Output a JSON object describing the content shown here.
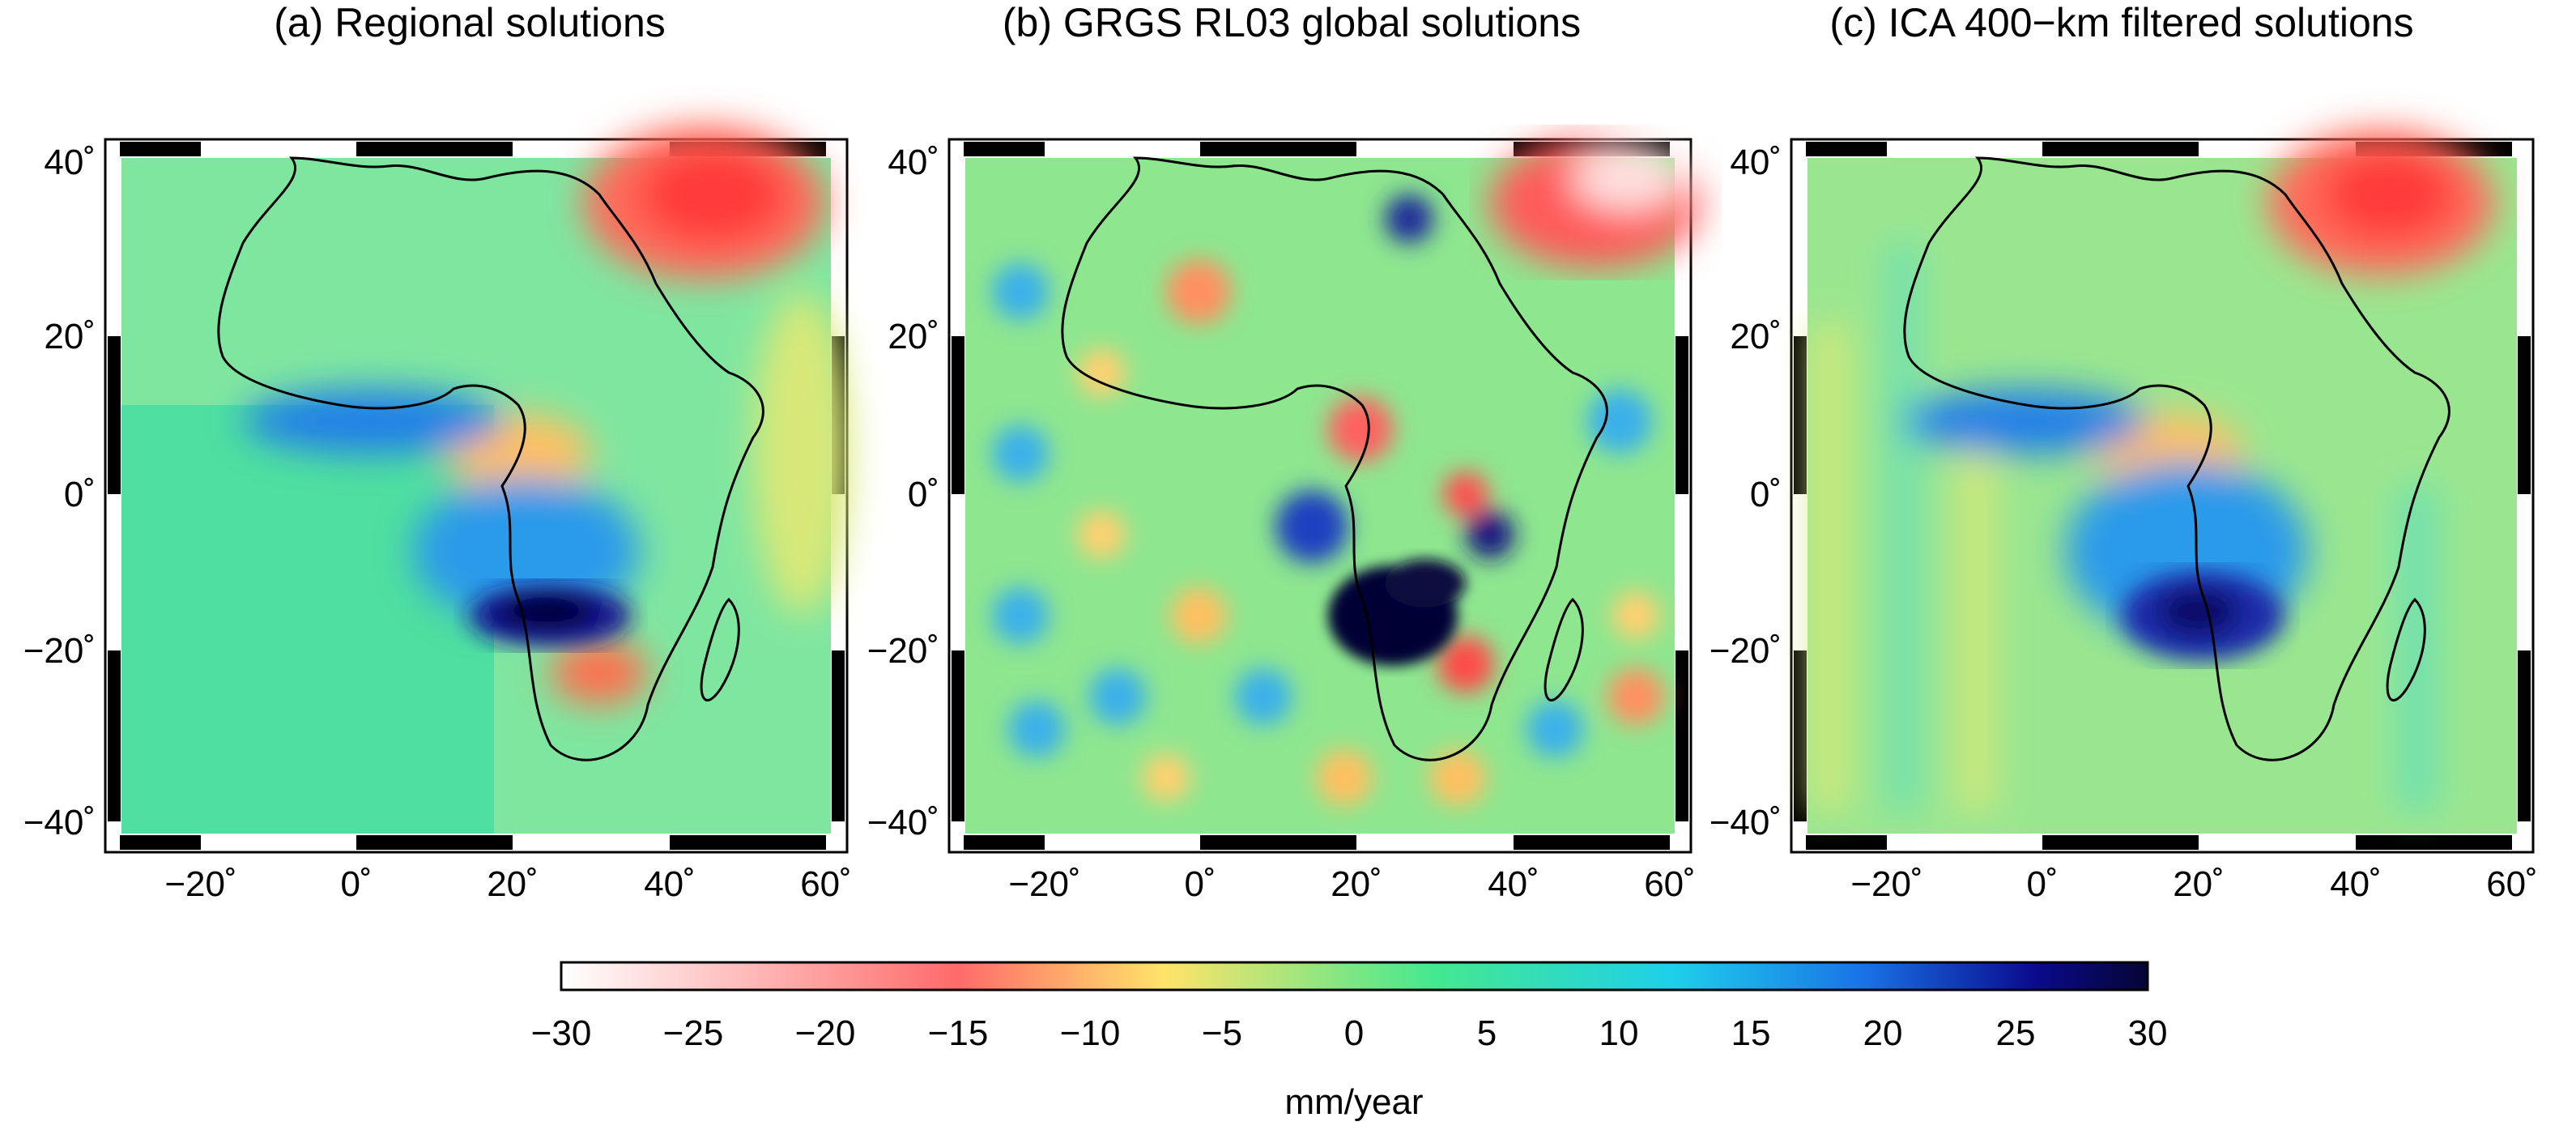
{
  "panels": [
    {
      "id": "a",
      "title": "(a) Regional solutions"
    },
    {
      "id": "b",
      "title": "(b) GRGS RL03 global solutions"
    },
    {
      "id": "c",
      "title": "(c) ICA 400−km filtered solutions"
    }
  ],
  "axes": {
    "lon_ticks": [
      {
        "value": -20,
        "label": "−20˚"
      },
      {
        "value": 0,
        "label": "0˚"
      },
      {
        "value": 20,
        "label": "20˚"
      },
      {
        "value": 40,
        "label": "40˚"
      },
      {
        "value": 60,
        "label": "60˚"
      }
    ],
    "lat_ticks": [
      {
        "value": 40,
        "label": "40˚"
      },
      {
        "value": 20,
        "label": "20˚"
      },
      {
        "value": 0,
        "label": "0˚"
      },
      {
        "value": -20,
        "label": "−20˚"
      },
      {
        "value": -40,
        "label": "−40˚"
      }
    ],
    "lon_range": [
      -30,
      60
    ],
    "lat_range": [
      -42,
      42
    ]
  },
  "colorbar": {
    "label": "mm/year",
    "range": [
      -30,
      30
    ],
    "ticks": [
      {
        "value": -30,
        "label": "−30"
      },
      {
        "value": -25,
        "label": "−25"
      },
      {
        "value": -20,
        "label": "−20"
      },
      {
        "value": -15,
        "label": "−15"
      },
      {
        "value": -10,
        "label": "−10"
      },
      {
        "value": -5,
        "label": "−5"
      },
      {
        "value": 0,
        "label": "0"
      },
      {
        "value": 5,
        "label": "5"
      },
      {
        "value": 10,
        "label": "10"
      },
      {
        "value": 15,
        "label": "15"
      },
      {
        "value": 20,
        "label": "20"
      },
      {
        "value": 25,
        "label": "25"
      },
      {
        "value": 30,
        "label": "30"
      }
    ],
    "stops": [
      "#ffffff",
      "#ff6a6a",
      "#ffe36a",
      "#44e88f",
      "#1ed0ea",
      "#1a73e8",
      "#0a0a8c",
      "#050535"
    ]
  }
}
